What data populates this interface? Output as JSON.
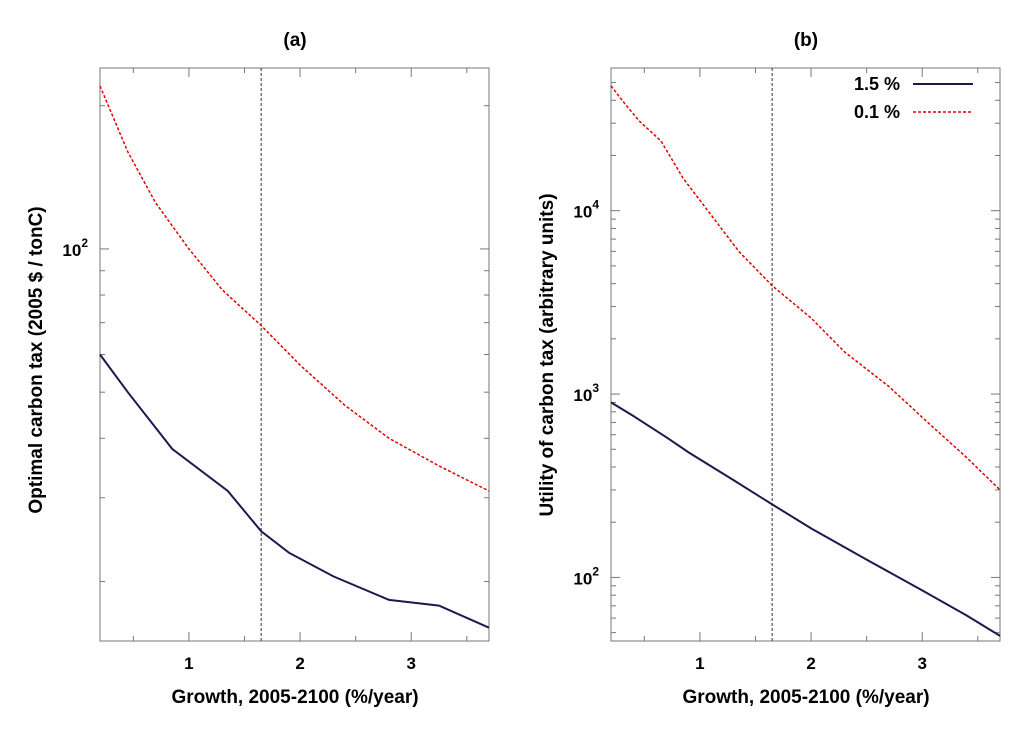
{
  "colors": {
    "series1": "#1a1a4e",
    "series2": "#e00000",
    "frame": "#777777",
    "vline": "#333333"
  },
  "chart_data": [
    {
      "type": "line",
      "title": "(a)",
      "xlabel": "Growth, 2005-2100 (%/year)",
      "ylabel": "Optimal carbon tax (2005 $ / tonC)",
      "yscale": "log",
      "xlim": [
        0.2,
        3.7
      ],
      "ylim": [
        15,
        240
      ],
      "xticks": [
        {
          "value": 1,
          "label": "1"
        },
        {
          "value": 2,
          "label": "2"
        },
        {
          "value": 3,
          "label": "3"
        }
      ],
      "yticks": [
        {
          "value": 100,
          "base": "10",
          "exp": "2"
        }
      ],
      "vline": 1.65,
      "series": [
        {
          "name": "1.5 %",
          "x": [
            0.2,
            0.45,
            0.85,
            1.35,
            1.65,
            1.9,
            2.3,
            2.8,
            3.25,
            3.7
          ],
          "y": [
            60,
            50,
            38,
            31,
            25.5,
            23,
            20.5,
            18.3,
            17.8,
            16
          ]
        },
        {
          "name": "0.1 %",
          "x": [
            0.2,
            0.45,
            0.7,
            1.0,
            1.3,
            1.65,
            2.0,
            2.4,
            2.8,
            3.25,
            3.7
          ],
          "y": [
            220,
            160,
            125,
            100,
            82,
            69,
            57,
            47,
            40,
            35,
            31
          ]
        }
      ]
    },
    {
      "type": "line",
      "title": "(b)",
      "xlabel": "Growth, 2005-2100 (%/year)",
      "ylabel": "Utility of carbon tax (arbitrary units)",
      "yscale": "log",
      "xlim": [
        0.2,
        3.7
      ],
      "ylim": [
        45,
        60000
      ],
      "xticks": [
        {
          "value": 1,
          "label": "1"
        },
        {
          "value": 2,
          "label": "2"
        },
        {
          "value": 3,
          "label": "3"
        }
      ],
      "yticks": [
        {
          "value": 100,
          "base": "10",
          "exp": "2"
        },
        {
          "value": 1000,
          "base": "10",
          "exp": "3"
        },
        {
          "value": 10000,
          "base": "10",
          "exp": "4"
        }
      ],
      "vline": 1.65,
      "legend_position": "top-right",
      "series": [
        {
          "name": "1.5 %",
          "x": [
            0.2,
            0.4,
            0.7,
            0.9,
            1.3,
            1.65,
            2.0,
            2.5,
            3.0,
            3.4,
            3.7
          ],
          "y": [
            900,
            760,
            580,
            480,
            340,
            250,
            185,
            125,
            85,
            62,
            48
          ]
        },
        {
          "name": "0.1 %",
          "x": [
            0.2,
            0.3,
            0.45,
            0.65,
            0.85,
            1.1,
            1.35,
            1.65,
            2.0,
            2.3,
            2.7,
            3.05,
            3.4,
            3.7
          ],
          "y": [
            48000,
            40000,
            31000,
            24000,
            15000,
            9500,
            6000,
            3900,
            2600,
            1700,
            1100,
            700,
            450,
            300
          ]
        }
      ]
    }
  ]
}
